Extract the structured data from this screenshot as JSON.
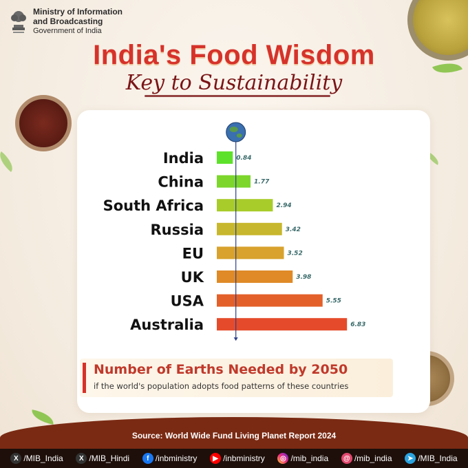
{
  "header": {
    "ministry_line1": "Ministry of Information",
    "ministry_line2": "and Broadcasting",
    "ministry_line3": "Government of India",
    "title": "India's Food Wisdom",
    "subtitle": "Key to Sustainability"
  },
  "chart_data": {
    "type": "bar",
    "orientation": "horizontal",
    "categories": [
      "India",
      "China",
      "South Africa",
      "Russia",
      "EU",
      "UK",
      "USA",
      "Australia"
    ],
    "values": [
      0.84,
      1.77,
      2.94,
      3.42,
      3.52,
      3.98,
      5.55,
      6.83
    ],
    "value_labels": [
      "0.84",
      "1.77",
      "2.94",
      "3.42",
      "3.52",
      "3.98",
      "5.55",
      "6.83"
    ],
    "highlight_category": "India",
    "highlight_color": "#1a1a8c",
    "bar_colors": [
      "#5ee12b",
      "#7cd62c",
      "#a8cc2a",
      "#c7b72e",
      "#d8a22c",
      "#df8a27",
      "#e4602a",
      "#e54b2a"
    ],
    "reference_line_value": 1,
    "reference_marker": "globe-icon",
    "xlim": [
      0,
      6.83
    ],
    "grid": false,
    "legend": "none"
  },
  "note": {
    "title": "Number of Earths Needed by 2050",
    "subtitle": "if the world's population adopts food patterns of these countries"
  },
  "footer": {
    "source": "Source: World Wide Fund Living Planet Report 2024",
    "social": [
      {
        "icon": "x-icon",
        "symbol": "X",
        "label": "/MIB_India"
      },
      {
        "icon": "x-icon",
        "symbol": "X",
        "label": "/MIB_Hindi"
      },
      {
        "icon": "facebook-icon",
        "symbol": "f",
        "label": "/inbministry"
      },
      {
        "icon": "youtube-icon",
        "symbol": "▶",
        "label": "/inbministry"
      },
      {
        "icon": "instagram-icon",
        "symbol": "◎",
        "label": "/mib_india"
      },
      {
        "icon": "threads-icon",
        "symbol": "@",
        "label": "/mib_india"
      },
      {
        "icon": "telegram-icon",
        "symbol": "➤",
        "label": "/MIB_India"
      }
    ]
  },
  "colors": {
    "title": "#d6322a",
    "subtitle": "#7a1416",
    "source_band": "#7a2a13",
    "social_bar": "#1e0f0a"
  }
}
